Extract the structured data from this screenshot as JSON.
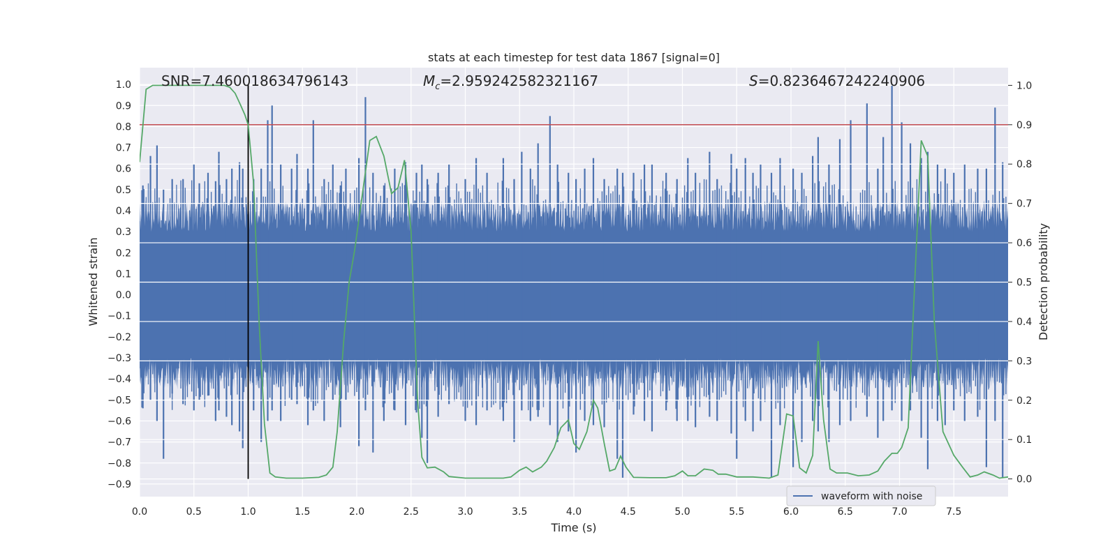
{
  "chart_data": {
    "type": "line",
    "title": "stats at each timestep for test data 1867 [signal=0]",
    "xlabel": "Time (s)",
    "ylabel_left": "Whitened strain",
    "ylabel_right": "Detection probability",
    "xlim": [
      0.0,
      8.0
    ],
    "ylim_left": [
      -0.96,
      1.08
    ],
    "ylim_right": [
      -0.045,
      1.045
    ],
    "x_ticks": [
      "0.0",
      "0.5",
      "1.0",
      "1.5",
      "2.0",
      "2.5",
      "3.0",
      "3.5",
      "4.0",
      "4.5",
      "5.0",
      "5.5",
      "6.0",
      "6.5",
      "7.0",
      "7.5"
    ],
    "y_ticks_left": [
      "1.0",
      "0.9",
      "0.8",
      "0.7",
      "0.6",
      "0.5",
      "0.4",
      "0.3",
      "0.2",
      "0.1",
      "0.0",
      "-0.1",
      "-0.2",
      "-0.3",
      "-0.4",
      "-0.5",
      "-0.6",
      "-0.7",
      "-0.8",
      "-0.9"
    ],
    "y_ticks_right": [
      "1.0",
      "0.9",
      "0.8",
      "0.7",
      "0.6",
      "0.5",
      "0.4",
      "0.3",
      "0.2",
      "0.1",
      "0.0"
    ],
    "grid": true,
    "legend": {
      "position": "lower-right",
      "entries": [
        "waveform with noise"
      ]
    },
    "annotations": {
      "snr": "SNR=7.460018634796143",
      "mc_symbol": "M",
      "mc_sub": "c",
      "mc_value": "=2.959242582321167",
      "s_symbol": "S",
      "s_value": "=0.8236467242240906"
    },
    "threshold_right": 0.9,
    "marker_time": 1.0,
    "colors": {
      "waveform": "#4c72b0",
      "probability": "#55a868",
      "threshold": "#c44e52",
      "marker": "#000000",
      "background": "#eaeaf2",
      "grid": "#ffffff"
    },
    "waveform_peaks": [
      [
        0.03,
        0.52,
        -0.54
      ],
      [
        0.1,
        0.66,
        -0.5
      ],
      [
        0.16,
        0.71,
        -0.6
      ],
      [
        0.22,
        0.5,
        -0.78
      ],
      [
        0.3,
        0.55,
        -0.47
      ],
      [
        0.4,
        0.55,
        -0.52
      ],
      [
        0.5,
        0.62,
        -0.55
      ],
      [
        0.55,
        0.53,
        -0.5
      ],
      [
        0.63,
        0.58,
        -0.48
      ],
      [
        0.7,
        0.54,
        -0.6
      ],
      [
        0.73,
        0.68,
        -0.55
      ],
      [
        0.8,
        0.55,
        -0.58
      ],
      [
        0.85,
        0.6,
        -0.62
      ],
      [
        0.92,
        0.63,
        -0.65
      ],
      [
        0.95,
        0.6,
        -0.73
      ],
      [
        1.05,
        0.55,
        -0.55
      ],
      [
        1.12,
        0.6,
        -0.7
      ],
      [
        1.18,
        0.83,
        -0.6
      ],
      [
        1.22,
        0.9,
        -0.55
      ],
      [
        1.3,
        0.62,
        -0.6
      ],
      [
        1.4,
        0.6,
        -0.5
      ],
      [
        1.45,
        0.67,
        -0.52
      ],
      [
        1.55,
        0.6,
        -0.62
      ],
      [
        1.6,
        0.83,
        -0.55
      ],
      [
        1.7,
        0.55,
        -0.6
      ],
      [
        1.78,
        0.62,
        -0.5
      ],
      [
        1.85,
        0.52,
        -0.63
      ],
      [
        1.9,
        0.6,
        -0.5
      ],
      [
        2.02,
        0.65,
        -0.72
      ],
      [
        2.08,
        0.94,
        -0.55
      ],
      [
        2.15,
        0.58,
        -0.75
      ],
      [
        2.25,
        0.52,
        -0.6
      ],
      [
        2.35,
        0.6,
        -0.55
      ],
      [
        2.45,
        0.63,
        -0.62
      ],
      [
        2.55,
        0.58,
        -0.56
      ],
      [
        2.6,
        0.62,
        -0.68
      ],
      [
        2.65,
        0.55,
        -0.8
      ],
      [
        2.75,
        0.58,
        -0.58
      ],
      [
        2.85,
        0.62,
        -0.52
      ],
      [
        3.0,
        0.55,
        -0.6
      ],
      [
        3.1,
        0.65,
        -0.62
      ],
      [
        3.2,
        0.58,
        -0.55
      ],
      [
        3.35,
        0.65,
        -0.6
      ],
      [
        3.45,
        0.55,
        -0.7
      ],
      [
        3.52,
        0.68,
        -0.55
      ],
      [
        3.6,
        0.6,
        -0.6
      ],
      [
        3.67,
        0.72,
        -0.58
      ],
      [
        3.78,
        0.85,
        -0.62
      ],
      [
        3.85,
        0.62,
        -0.7
      ],
      [
        3.95,
        0.58,
        -0.65
      ],
      [
        4.02,
        0.55,
        -0.75
      ],
      [
        4.1,
        0.6,
        -0.6
      ],
      [
        4.18,
        0.65,
        -0.62
      ],
      [
        4.28,
        0.55,
        -0.63
      ],
      [
        4.4,
        0.6,
        -0.78
      ],
      [
        4.45,
        0.58,
        -0.87
      ],
      [
        4.55,
        0.58,
        -0.57
      ],
      [
        4.65,
        0.62,
        -0.6
      ],
      [
        4.72,
        0.62,
        -0.65
      ],
      [
        4.85,
        0.58,
        -0.55
      ],
      [
        4.95,
        0.55,
        -0.6
      ],
      [
        5.05,
        0.65,
        -0.6
      ],
      [
        5.12,
        0.58,
        -0.63
      ],
      [
        5.25,
        0.68,
        -0.58
      ],
      [
        5.32,
        0.55,
        -0.6
      ],
      [
        5.45,
        0.67,
        -0.66
      ],
      [
        5.5,
        0.6,
        -0.78
      ],
      [
        5.58,
        0.65,
        -0.6
      ],
      [
        5.65,
        0.58,
        -0.65
      ],
      [
        5.72,
        0.62,
        -0.6
      ],
      [
        5.82,
        0.58,
        -0.87
      ],
      [
        5.9,
        0.65,
        -0.62
      ],
      [
        6.02,
        0.6,
        -0.82
      ],
      [
        6.1,
        0.58,
        -0.7
      ],
      [
        6.2,
        0.66,
        -0.6
      ],
      [
        6.25,
        0.75,
        -0.65
      ],
      [
        6.35,
        0.62,
        -0.7
      ],
      [
        6.45,
        0.74,
        -0.62
      ],
      [
        6.55,
        0.83,
        -0.6
      ],
      [
        6.7,
        0.91,
        -0.58
      ],
      [
        6.8,
        0.6,
        -0.68
      ],
      [
        6.85,
        0.75,
        -0.6
      ],
      [
        6.93,
        1.0,
        -0.55
      ],
      [
        7.02,
        0.82,
        -0.6
      ],
      [
        7.1,
        0.72,
        -0.55
      ],
      [
        7.2,
        0.65,
        -0.68
      ],
      [
        7.26,
        0.68,
        -0.83
      ],
      [
        7.35,
        0.62,
        -0.6
      ],
      [
        7.42,
        0.6,
        -0.62
      ],
      [
        7.5,
        0.58,
        -0.55
      ],
      [
        7.6,
        0.62,
        -0.6
      ],
      [
        7.72,
        0.6,
        -0.58
      ],
      [
        7.8,
        0.6,
        -0.82
      ],
      [
        7.88,
        0.89,
        -0.6
      ],
      [
        7.95,
        0.63,
        -0.87
      ]
    ],
    "probability": [
      [
        0.0,
        0.805
      ],
      [
        0.06,
        0.99
      ],
      [
        0.12,
        1.0
      ],
      [
        0.78,
        1.0
      ],
      [
        0.83,
        0.995
      ],
      [
        0.88,
        0.98
      ],
      [
        0.93,
        0.95
      ],
      [
        0.97,
        0.925
      ],
      [
        1.0,
        0.9
      ],
      [
        1.05,
        0.75
      ],
      [
        1.1,
        0.4
      ],
      [
        1.15,
        0.14
      ],
      [
        1.2,
        0.015
      ],
      [
        1.25,
        0.005
      ],
      [
        1.35,
        0.002
      ],
      [
        1.5,
        0.002
      ],
      [
        1.65,
        0.004
      ],
      [
        1.72,
        0.01
      ],
      [
        1.78,
        0.03
      ],
      [
        1.82,
        0.12
      ],
      [
        1.88,
        0.35
      ],
      [
        1.93,
        0.5
      ],
      [
        1.98,
        0.58
      ],
      [
        2.05,
        0.72
      ],
      [
        2.12,
        0.86
      ],
      [
        2.18,
        0.87
      ],
      [
        2.25,
        0.82
      ],
      [
        2.32,
        0.725
      ],
      [
        2.38,
        0.74
      ],
      [
        2.44,
        0.81
      ],
      [
        2.5,
        0.63
      ],
      [
        2.56,
        0.2
      ],
      [
        2.6,
        0.055
      ],
      [
        2.65,
        0.028
      ],
      [
        2.72,
        0.03
      ],
      [
        2.8,
        0.018
      ],
      [
        2.85,
        0.006
      ],
      [
        3.0,
        0.002
      ],
      [
        3.2,
        0.002
      ],
      [
        3.35,
        0.002
      ],
      [
        3.42,
        0.005
      ],
      [
        3.5,
        0.022
      ],
      [
        3.56,
        0.03
      ],
      [
        3.62,
        0.018
      ],
      [
        3.7,
        0.03
      ],
      [
        3.75,
        0.045
      ],
      [
        3.82,
        0.08
      ],
      [
        3.88,
        0.13
      ],
      [
        3.95,
        0.15
      ],
      [
        4.0,
        0.09
      ],
      [
        4.05,
        0.075
      ],
      [
        4.12,
        0.12
      ],
      [
        4.18,
        0.2
      ],
      [
        4.22,
        0.18
      ],
      [
        4.28,
        0.09
      ],
      [
        4.33,
        0.02
      ],
      [
        4.38,
        0.025
      ],
      [
        4.43,
        0.058
      ],
      [
        4.48,
        0.03
      ],
      [
        4.55,
        0.004
      ],
      [
        4.7,
        0.003
      ],
      [
        4.85,
        0.003
      ],
      [
        4.93,
        0.008
      ],
      [
        5.0,
        0.02
      ],
      [
        5.05,
        0.008
      ],
      [
        5.12,
        0.008
      ],
      [
        5.2,
        0.025
      ],
      [
        5.28,
        0.022
      ],
      [
        5.33,
        0.012
      ],
      [
        5.4,
        0.012
      ],
      [
        5.5,
        0.005
      ],
      [
        5.65,
        0.005
      ],
      [
        5.8,
        0.002
      ],
      [
        5.88,
        0.01
      ],
      [
        5.96,
        0.165
      ],
      [
        6.02,
        0.16
      ],
      [
        6.08,
        0.028
      ],
      [
        6.14,
        0.015
      ],
      [
        6.2,
        0.06
      ],
      [
        6.25,
        0.35
      ],
      [
        6.3,
        0.15
      ],
      [
        6.36,
        0.025
      ],
      [
        6.42,
        0.015
      ],
      [
        6.52,
        0.015
      ],
      [
        6.62,
        0.008
      ],
      [
        6.72,
        0.01
      ],
      [
        6.8,
        0.02
      ],
      [
        6.86,
        0.045
      ],
      [
        6.93,
        0.065
      ],
      [
        6.98,
        0.065
      ],
      [
        7.02,
        0.08
      ],
      [
        7.08,
        0.13
      ],
      [
        7.14,
        0.5
      ],
      [
        7.2,
        0.86
      ],
      [
        7.26,
        0.82
      ],
      [
        7.32,
        0.4
      ],
      [
        7.4,
        0.12
      ],
      [
        7.5,
        0.06
      ],
      [
        7.58,
        0.03
      ],
      [
        7.65,
        0.005
      ],
      [
        7.72,
        0.01
      ],
      [
        7.78,
        0.018
      ],
      [
        7.86,
        0.01
      ],
      [
        7.92,
        0.002
      ],
      [
        8.0,
        0.005
      ]
    ]
  }
}
